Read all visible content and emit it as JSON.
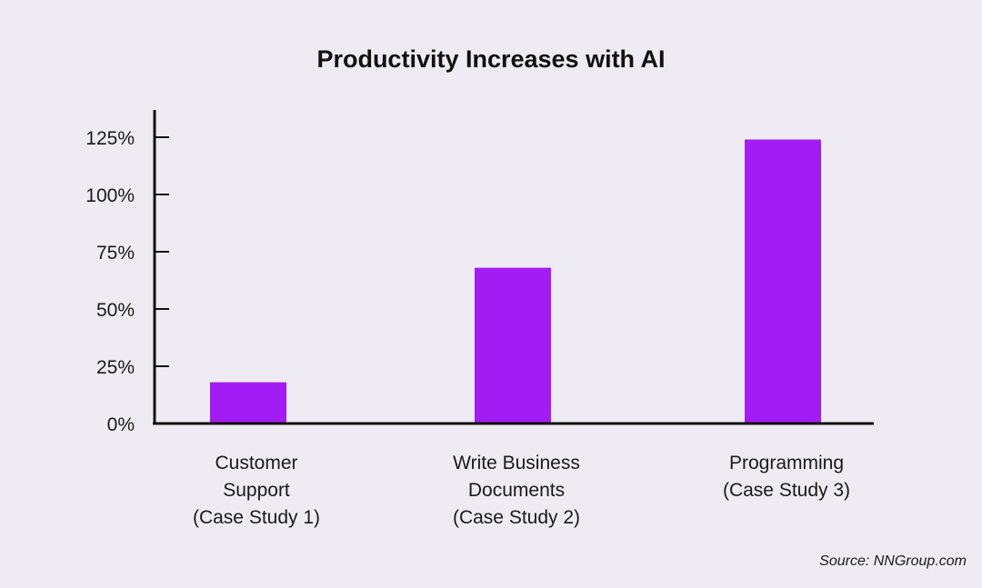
{
  "chart_data": {
    "type": "bar",
    "title": "Productivity Increases with AI",
    "xlabel": "",
    "ylabel": "",
    "categories": [
      [
        "Customer",
        "Support",
        "(Case Study 1)"
      ],
      [
        "Write Business",
        "Documents",
        "(Case Study 2)"
      ],
      [
        "Programming",
        "(Case Study 3)"
      ]
    ],
    "values": [
      18,
      68,
      124
    ],
    "ylim": [
      0,
      125
    ],
    "yticks": [
      0,
      25,
      50,
      75,
      100,
      125
    ],
    "ytick_labels": [
      "0%",
      "25%",
      "50%",
      "75%",
      "100%",
      "125%"
    ],
    "grid": false,
    "bar_color": "#a21cf3"
  },
  "source": "Source: NNGroup.com",
  "colors": {
    "background": "#efebf3",
    "axis": "#111111",
    "bar": "#a21cf3"
  }
}
